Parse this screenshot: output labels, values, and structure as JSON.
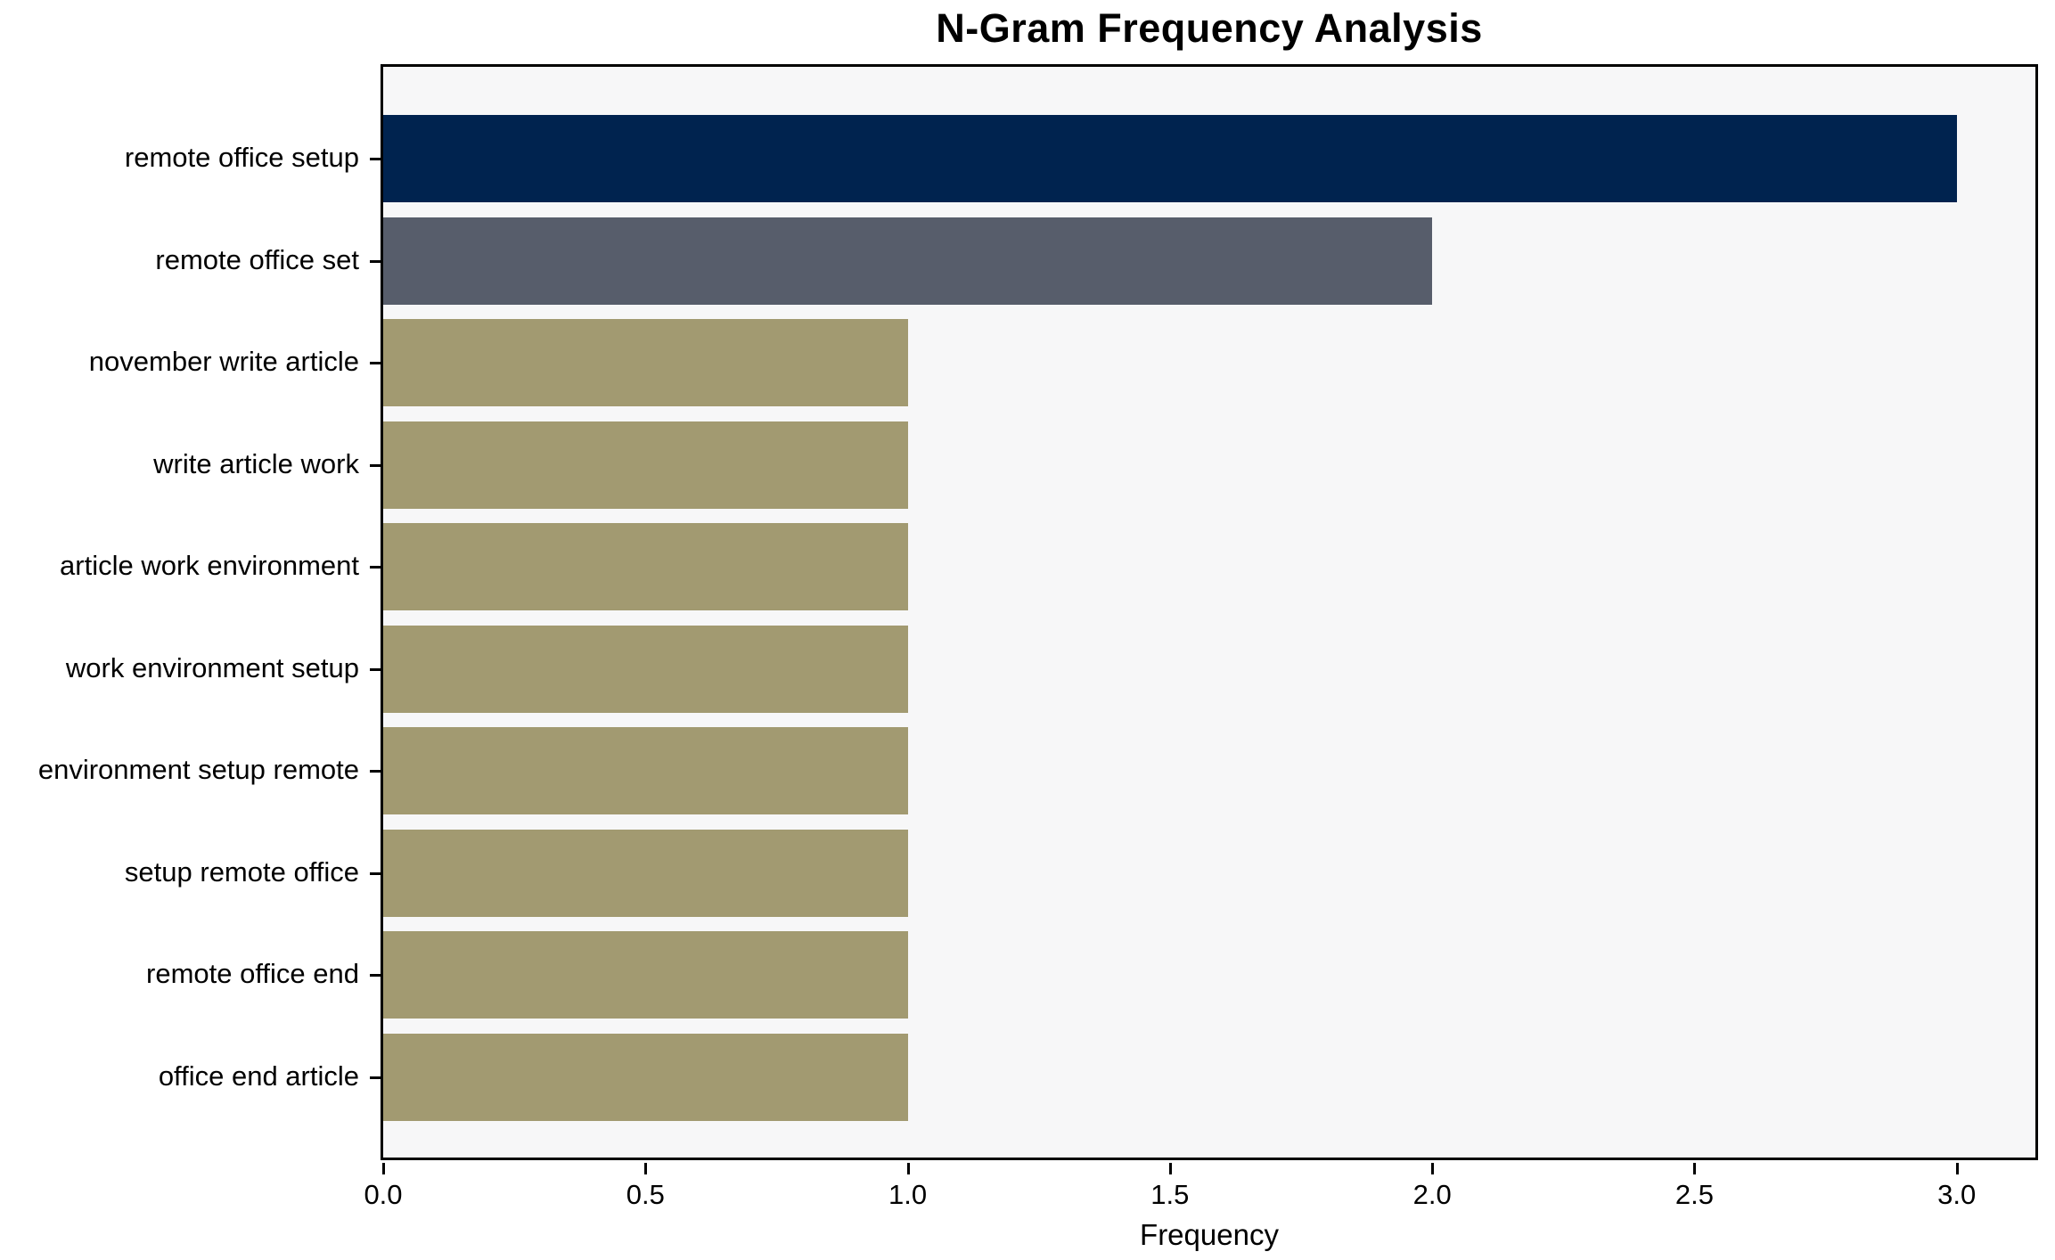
{
  "chart_data": {
    "type": "bar",
    "orientation": "horizontal",
    "title": "N-Gram Frequency Analysis",
    "xlabel": "Frequency",
    "ylabel": "",
    "categories": [
      "remote office setup",
      "remote office set",
      "november write article",
      "write article work",
      "article work environment",
      "work environment setup",
      "environment setup remote",
      "setup remote office",
      "remote office end",
      "office end article"
    ],
    "values": [
      3,
      2,
      1,
      1,
      1,
      1,
      1,
      1,
      1,
      1
    ],
    "bar_colors": [
      "#00234f",
      "#575d6b",
      "#a29a71",
      "#a29a71",
      "#a29a71",
      "#a29a71",
      "#a29a71",
      "#a29a71",
      "#a29a71",
      "#a29a71"
    ],
    "x_ticks": [
      {
        "value": 0.0,
        "label": "0.0"
      },
      {
        "value": 0.5,
        "label": "0.5"
      },
      {
        "value": 1.0,
        "label": "1.0"
      },
      {
        "value": 1.5,
        "label": "1.5"
      },
      {
        "value": 2.0,
        "label": "2.0"
      },
      {
        "value": 2.5,
        "label": "2.5"
      },
      {
        "value": 3.0,
        "label": "3.0"
      }
    ],
    "xlim": [
      0,
      3.15
    ],
    "grid": false,
    "legend": null,
    "plot_background": "#f7f7f8",
    "figure_background": "#ffffff",
    "spine_color": "#000000"
  }
}
